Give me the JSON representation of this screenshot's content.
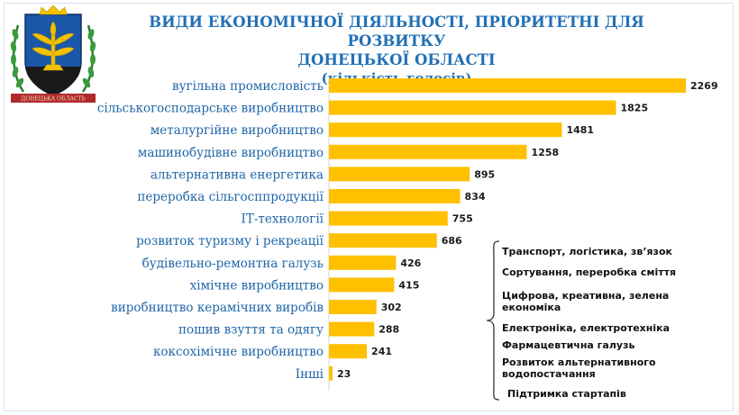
{
  "header": {
    "title_line1": "ВИДИ ЕКОНОМІЧНОЇ ДІЯЛЬНОСТІ, ПРІОРИТЕТНІ ДЛЯ РОЗВИТКУ",
    "title_line2": "ДОНЕЦЬКОЇ ОБЛАСТІ",
    "title_line3": "(кількість  голосів)",
    "emblem_ribbon": "ДОНЕЦЬКА ОБЛАСТЬ"
  },
  "colors": {
    "bar": "#ffc000",
    "title": "#2270b6",
    "label": "#1f66a8",
    "emblem_blue": "#1b57a8",
    "emblem_gold": "#f2c200",
    "ribbon": "#b0282b"
  },
  "chart_data": {
    "type": "bar",
    "orientation": "horizontal",
    "title": "ВИДИ ЕКОНОМІЧНОЇ ДІЯЛЬНОСТІ, ПРІОРИТЕТНІ ДЛЯ РОЗВИТКУ ДОНЕЦЬКОЇ ОБЛАСТІ (кількість голосів)",
    "categories": [
      "вугільна промисловість",
      "сільськогосподарське виробництво",
      "металургійне виробництво",
      "машинобудівне виробництво",
      "альтернативна енергетика",
      "переробка сільгосппродукції",
      "ІТ-технології",
      "розвиток туризму і рекреації",
      "будівельно-ремонтна галузь",
      "хімічне виробництво",
      "виробництво керамічних виробів",
      "пошив взуття та одягу",
      "коксохімічне виробництво",
      "Інші"
    ],
    "values": [
      2269,
      1825,
      1481,
      1258,
      895,
      834,
      755,
      686,
      426,
      415,
      302,
      288,
      241,
      23
    ],
    "xlim": [
      0,
      2269
    ],
    "grid": false,
    "legend": "none",
    "annotations": [
      "Транспорт, логістика, зв’язок",
      "Сортування, переробка сміття",
      "Цифрова, креативна, зелена економіка",
      "Електроніка, електротехніка",
      "Фармацевтична галузь",
      "Розвиток альтернативного водопостачання",
      "Підтримка стартапів"
    ]
  }
}
